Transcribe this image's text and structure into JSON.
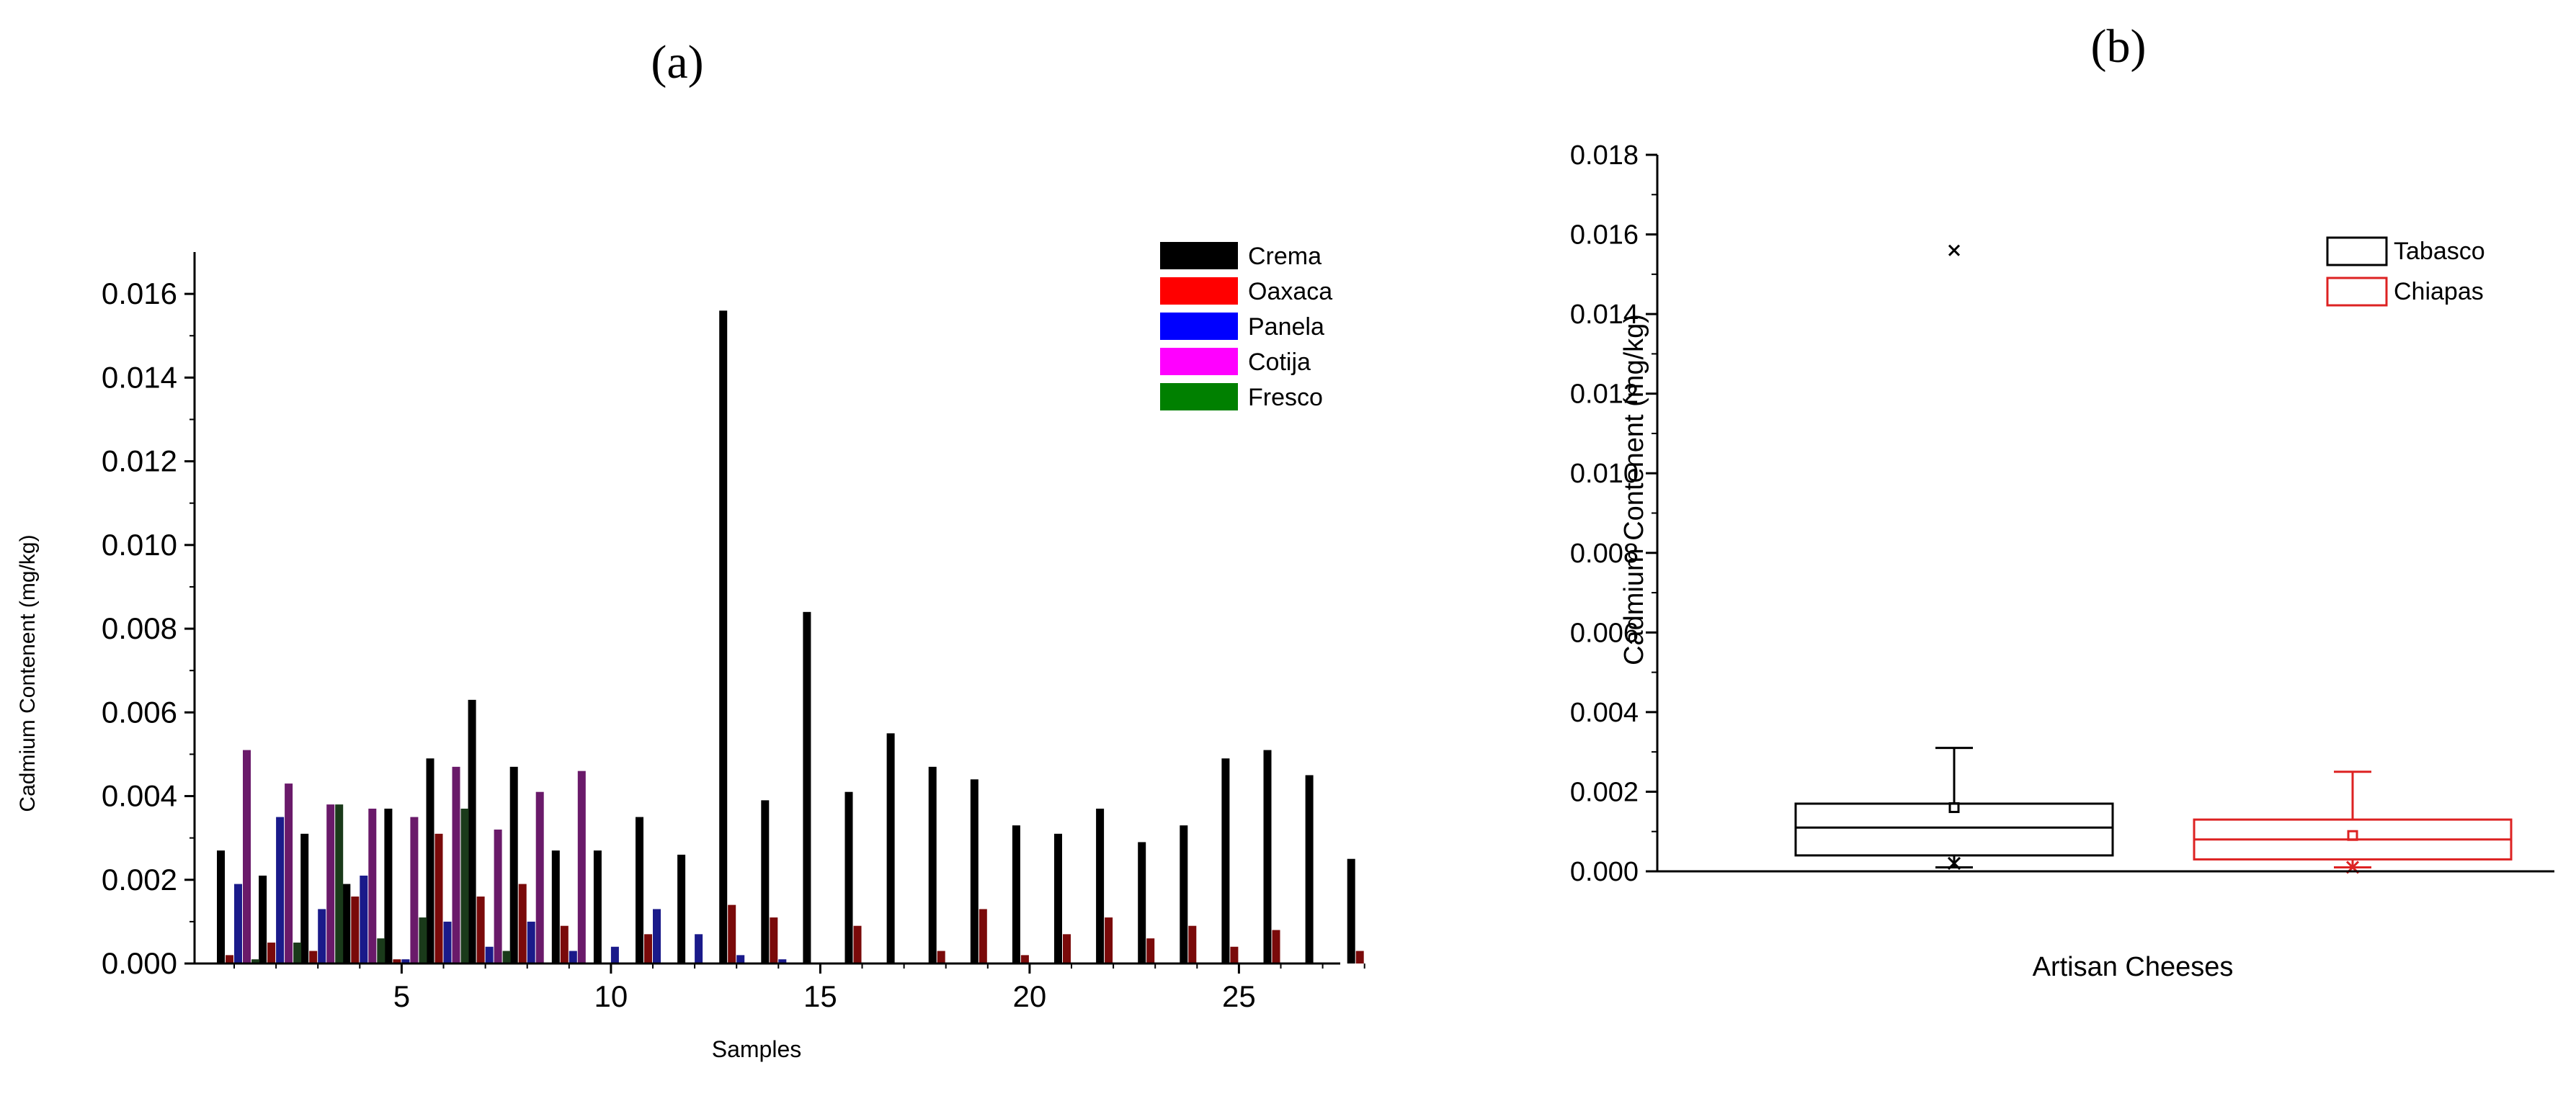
{
  "chart_data": [
    {
      "panel": "(a)",
      "type": "bar",
      "xlabel": "Samples",
      "ylabel": "Cadmium Contenent (mg/kg)",
      "ylim": [
        0,
        0.017
      ],
      "yticks": [
        "0.000",
        "0.002",
        "0.004",
        "0.006",
        "0.008",
        "0.010",
        "0.012",
        "0.014",
        "0.016"
      ],
      "xticks": [
        "5",
        "10",
        "15",
        "20",
        "25"
      ],
      "legend_position": "top-right",
      "categories": [
        1,
        2,
        3,
        4,
        5,
        6,
        7,
        8,
        9,
        10,
        11,
        12,
        13,
        14,
        15,
        16,
        17,
        18,
        19,
        20,
        21,
        22,
        23,
        24,
        25,
        26,
        27,
        28
      ],
      "series": [
        {
          "name": "Crema",
          "color": "#000000",
          "values": [
            0.0027,
            0.0021,
            0.0031,
            0.0019,
            0.0037,
            0.0049,
            0.0063,
            0.0047,
            0.0027,
            0.0027,
            0.0035,
            0.0026,
            0.0156,
            0.0039,
            0.0084,
            0.0041,
            0.0055,
            0.0047,
            0.0044,
            0.0033,
            0.0031,
            0.0037,
            0.0029,
            0.0033,
            0.0049,
            0.0051,
            0.0045,
            0.0025
          ]
        },
        {
          "name": "Oaxaca",
          "color": "#ff0000",
          "values": [
            0.0002,
            0.0005,
            0.0003,
            0.0016,
            0.0001,
            0.0031,
            0.0016,
            0.0019,
            0.0009,
            0,
            0.0007,
            0,
            0.0014,
            0.0011,
            0,
            0.0009,
            0,
            0.0003,
            0.0013,
            0.0002,
            0.0007,
            0.0011,
            0.0006,
            0.0009,
            0.0004,
            0.0008,
            0,
            0.0003
          ]
        },
        {
          "name": "Panela",
          "color": "#0000ff",
          "values": [
            0.0019,
            0.0035,
            0.0013,
            0.0021,
            0.0001,
            0.001,
            0.0004,
            0.001,
            0.0003,
            0.0004,
            0.0013,
            0.0007,
            0.0002,
            0.0001,
            0,
            0,
            0,
            0,
            0,
            0,
            0,
            0,
            0,
            0,
            0,
            0,
            0,
            0
          ]
        },
        {
          "name": "Cotija",
          "color": "#ff00ff",
          "values": [
            0.0051,
            0.0043,
            0.0038,
            0.0037,
            0.0035,
            0.0047,
            0.0032,
            0.0041,
            0.0046,
            0,
            0,
            0,
            0,
            0,
            0,
            0,
            0,
            0,
            0,
            0,
            0,
            0,
            0,
            0,
            0,
            0,
            0,
            0
          ]
        },
        {
          "name": "Fresco",
          "color": "#008000",
          "values": [
            0.0001,
            0.0005,
            0.0038,
            0.0006,
            0.0011,
            0.0037,
            0.0003,
            0,
            0,
            0,
            0,
            0,
            0,
            0,
            0,
            0,
            0,
            0,
            0,
            0,
            0,
            0,
            0,
            0,
            0,
            0,
            0,
            0
          ]
        }
      ]
    },
    {
      "panel": "(b)",
      "type": "box",
      "xlabel": "Artisan Cheeses",
      "ylabel": "Cadmium Contenent (mg/kg)",
      "ylim": [
        0,
        0.018
      ],
      "yticks": [
        "0.000",
        "0.002",
        "0.004",
        "0.006",
        "0.008",
        "0.010",
        "0.012",
        "0.014",
        "0.016",
        "0.018"
      ],
      "legend_position": "top-right",
      "series": [
        {
          "name": "Tabasco",
          "color": "#000000",
          "whisker_low": 0.0001,
          "q1": 0.0004,
          "median": 0.0011,
          "q3": 0.0017,
          "whisker_high": 0.0031,
          "mean": 0.0016,
          "min_marker": 0.0002,
          "outliers": [
            0.0156
          ]
        },
        {
          "name": "Chiapas",
          "color": "#dd2222",
          "whisker_low": 0.0001,
          "q1": 0.0003,
          "median": 0.0008,
          "q3": 0.0013,
          "whisker_high": 0.0025,
          "mean": 0.0009,
          "min_marker": 0.0001,
          "outliers": []
        }
      ]
    }
  ]
}
